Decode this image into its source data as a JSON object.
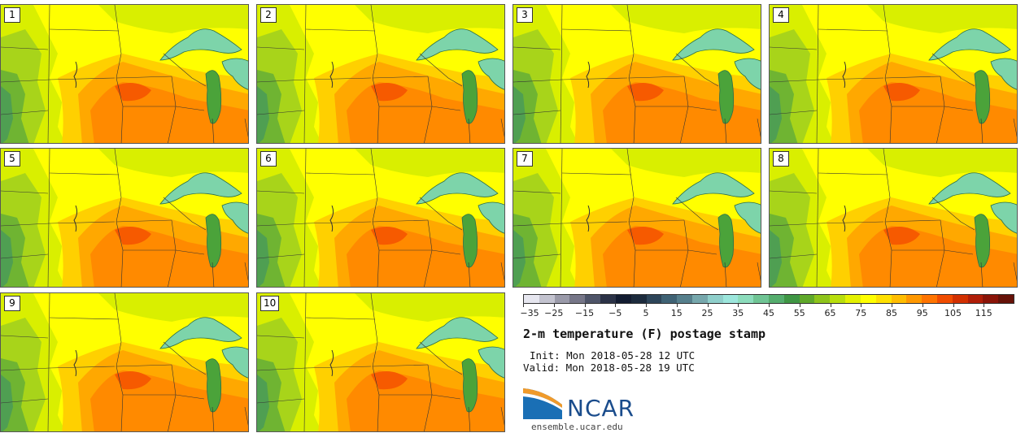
{
  "panels": [
    {
      "label": "1"
    },
    {
      "label": "2"
    },
    {
      "label": "3"
    },
    {
      "label": "4"
    },
    {
      "label": "5"
    },
    {
      "label": "6"
    },
    {
      "label": "7"
    },
    {
      "label": "8"
    },
    {
      "label": "9"
    },
    {
      "label": "10"
    }
  ],
  "colorbar": {
    "min": -35,
    "max": 120,
    "step": 5,
    "tick_labels": [
      "−35",
      "−25",
      "−15",
      "−5",
      "5",
      "15",
      "25",
      "35",
      "45",
      "55",
      "65",
      "75",
      "85",
      "95",
      "105",
      "115"
    ],
    "colors": [
      "#e6e6ef",
      "#c3c3cf",
      "#9a9aa9",
      "#767688",
      "#4e5468",
      "#2b3247",
      "#131c31",
      "#1c2b3d",
      "#2d4559",
      "#3f6274",
      "#567f8c",
      "#76a7ac",
      "#8fcfcb",
      "#9ce6dc",
      "#8cdcbc",
      "#6fc494",
      "#55ad6d",
      "#3f9644",
      "#5fa82a",
      "#8ec41b",
      "#b8de0d",
      "#e4f100",
      "#ffff00",
      "#ffe000",
      "#ffbd00",
      "#ff9800",
      "#ff7400",
      "#f04c00",
      "#d23000",
      "#b01e08",
      "#8a1408",
      "#661208"
    ]
  },
  "title": "2-m temperature (F) postage stamp",
  "init": "Init: Mon 2018-05-28 12 UTC",
  "valid": "Valid: Mon 2018-05-28 19 UTC",
  "logo": {
    "text": "NCAR",
    "url": "ensemble.ucar.edu",
    "color": "#1a4c8c"
  }
}
